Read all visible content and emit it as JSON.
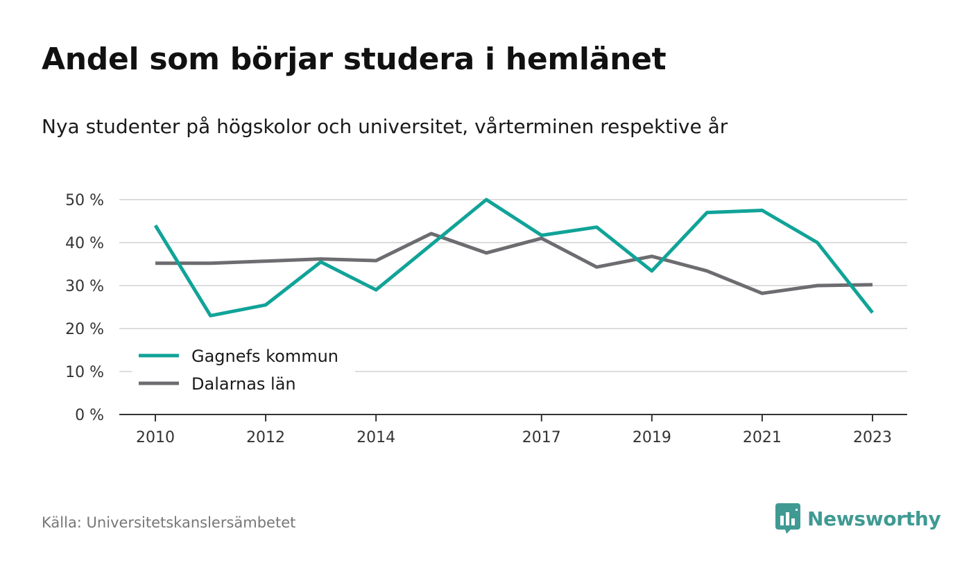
{
  "title": "Andel som börjar studera i hemlänet",
  "subtitle": "Nya studenter på högskolor och universitet, vårterminen respektive år",
  "source": "Källa: Universitetskanslersämbetet",
  "brand": {
    "name": "Newsworthy",
    "icon": "chat-bar-chart-icon",
    "color": "#3f9a93"
  },
  "chart_data": {
    "type": "line",
    "x": [
      2010,
      2011,
      2012,
      2013,
      2014,
      2015,
      2016,
      2017,
      2018,
      2019,
      2020,
      2021,
      2022,
      2023
    ],
    "x_tick_labels": [
      "2010",
      "2012",
      "2014",
      "2017",
      "2019",
      "2021",
      "2023"
    ],
    "x_tick_values": [
      2010,
      2012,
      2014,
      2017,
      2019,
      2021,
      2023
    ],
    "y_tick_values": [
      0,
      10,
      20,
      30,
      40,
      50
    ],
    "y_tick_labels": [
      "0 %",
      "10 %",
      "20 %",
      "30 %",
      "40 %",
      "50 %"
    ],
    "ylim": [
      0,
      50
    ],
    "grid": true,
    "legend_position": "bottom-left",
    "series": [
      {
        "name": "Gagnefs kommun",
        "color": "#11a398",
        "values": [
          44,
          23,
          25.5,
          35.5,
          29,
          39.5,
          50,
          41.7,
          43.6,
          33.4,
          47,
          47.5,
          40,
          23.7
        ]
      },
      {
        "name": "Dalarnas län",
        "color": "#6d6c70",
        "values": [
          35.2,
          35.2,
          35.7,
          36.2,
          35.8,
          42.1,
          37.6,
          41,
          34.3,
          36.8,
          33.4,
          28.2,
          30,
          30.2
        ]
      }
    ]
  }
}
